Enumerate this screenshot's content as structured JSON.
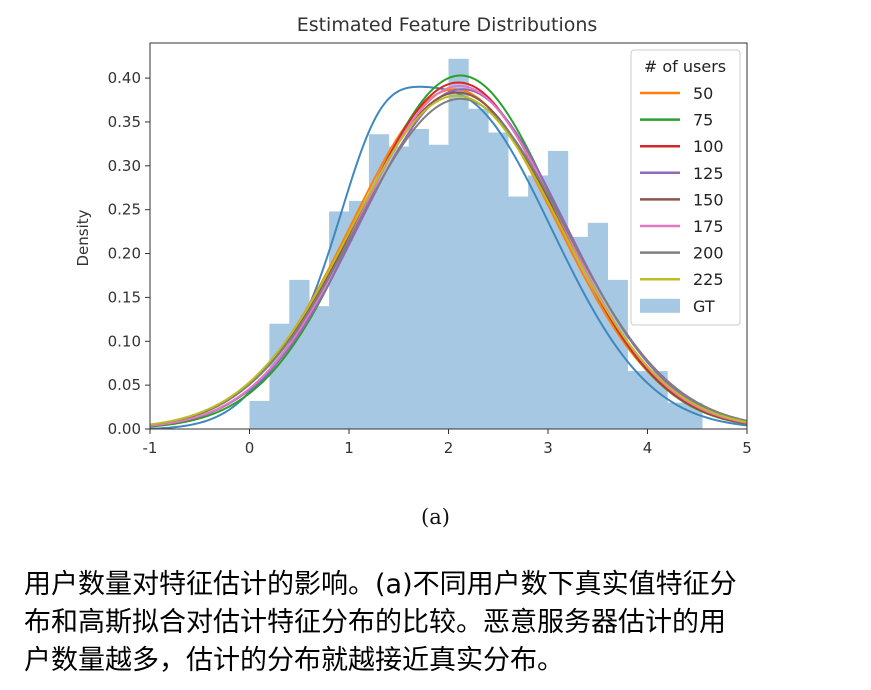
{
  "sub_label": "(a)",
  "caption": {
    "line1": "用户数量对特征估计的影响。(a)不同用户数下真实值特征分",
    "line2": "布和高斯拟合对估计特征分布的比较。恶意服务器估计的用",
    "line3": "户数量越多，估计的分布就越接近真实分布。"
  },
  "chart_data": {
    "type": "line",
    "title": "Estimated Feature Distributions",
    "xlabel": "",
    "ylabel": "Density",
    "xlim": [
      -1,
      5
    ],
    "ylim": [
      0,
      0.44
    ],
    "xticks": [
      -1,
      0,
      1,
      2,
      3,
      4,
      5
    ],
    "xtick_labels": [
      "-1",
      "0",
      "1",
      "2",
      "3",
      "4",
      "5"
    ],
    "yticks": [
      0.0,
      0.05,
      0.1,
      0.15,
      0.2,
      0.25,
      0.3,
      0.35,
      0.4
    ],
    "ytick_labels": [
      "0.00",
      "0.05",
      "0.10",
      "0.15",
      "0.20",
      "0.25",
      "0.30",
      "0.35",
      "0.40"
    ],
    "legend": {
      "title": "# of users",
      "position": "top-right"
    },
    "histogram": {
      "name": "GT",
      "color": "#a6c8e2",
      "bin_edges": [
        0,
        0.2,
        0.4,
        0.6,
        0.8,
        1.0,
        1.2,
        1.4,
        1.6,
        1.8,
        2.0,
        2.2,
        2.4,
        2.6,
        2.8,
        3.0,
        3.2,
        3.4,
        3.6,
        3.8,
        4.0,
        4.2,
        4.4,
        4.55
      ],
      "densities": [
        0.032,
        0.12,
        0.17,
        0.14,
        0.248,
        0.26,
        0.336,
        0.322,
        0.342,
        0.324,
        0.422,
        0.365,
        0.338,
        0.265,
        0.289,
        0.317,
        0.219,
        0.235,
        0.17,
        0.066,
        0.066,
        0.03,
        0.03
      ]
    },
    "kde": {
      "name": "",
      "color": "#3f88bf",
      "mean": 2.05,
      "std": 1.0
    },
    "series": [
      {
        "name": "50",
        "color": "#ff7f0e",
        "mean": 2.06,
        "std": 1.03
      },
      {
        "name": "75",
        "color": "#2ca02c",
        "mean": 2.12,
        "std": 0.99
      },
      {
        "name": "100",
        "color": "#d62728",
        "mean": 2.1,
        "std": 1.01
      },
      {
        "name": "125",
        "color": "#9467bd",
        "mean": 2.14,
        "std": 1.03
      },
      {
        "name": "150",
        "color": "#8c564b",
        "mean": 2.09,
        "std": 1.04
      },
      {
        "name": "175",
        "color": "#e377c2",
        "mean": 2.11,
        "std": 1.02
      },
      {
        "name": "200",
        "color": "#7f7f7f",
        "mean": 2.12,
        "std": 1.06
      },
      {
        "name": "225",
        "color": "#bcbd22",
        "mean": 2.08,
        "std": 1.05
      }
    ]
  }
}
